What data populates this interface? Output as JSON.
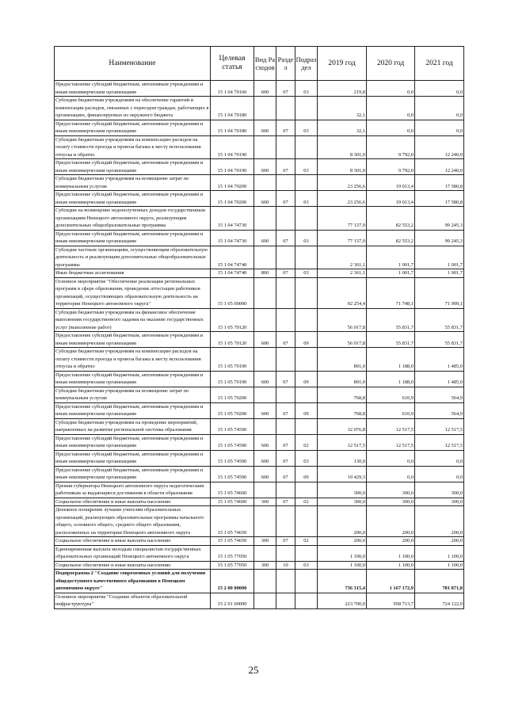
{
  "header": {
    "name": "Наименование",
    "target": "Целевая статья",
    "vid": "Вид Расходов",
    "razdel": "Раздел",
    "podrazdel": "Подраздел",
    "y2019": "2019 год",
    "y2020": "2020 год",
    "y2021": "2021 год"
  },
  "rows": [
    {
      "name": "Предоставление субсидий бюджетным, автономным учреждениям и иным некоммерческим организациям",
      "code": "15 1 04 70160",
      "vid": "600",
      "rz": "07",
      "pr": "03",
      "v2019": "219,8",
      "v2020": "0,0",
      "v2021": "0,0"
    },
    {
      "name": "Субсидии бюджетным учреждениям на обеспечение гарантий и компенсации расходов, связанных с переездом граждан, работающих в организациях, финансируемых из окружного бюджета",
      "code": "15 1 04 70180",
      "vid": "",
      "rz": "",
      "pr": "",
      "v2019": "32,1",
      "v2020": "0,0",
      "v2021": "0,0"
    },
    {
      "name": "Предоставление субсидий бюджетным, автономным учреждениям и иным некоммерческим организациям",
      "code": "15 1 04 70180",
      "vid": "600",
      "rz": "07",
      "pr": "03",
      "v2019": "32,1",
      "v2020": "0,0",
      "v2021": "0,0"
    },
    {
      "name": "Субсидии бюджетным учреждениям на компенсацию расходов на оплату стоимости проезда и провоза багажа к месту использования отпуска и обратно",
      "code": "15 1 04 70190",
      "vid": "",
      "rz": "",
      "pr": "",
      "v2019": "8 301,0",
      "v2020": "9 792,0",
      "v2021": "12 240,0"
    },
    {
      "name": "Предоставление субсидий бюджетным, автономным учреждениям и иным некоммерческим организациям",
      "code": "15 1 04 70190",
      "vid": "600",
      "rz": "07",
      "pr": "03",
      "v2019": "8 301,0",
      "v2020": "9 792,0",
      "v2021": "12 240,0"
    },
    {
      "name": "Субсидии бюджетным учреждениям на возмещение затрат по коммунальным услугам",
      "code": "15 1 04 70200",
      "vid": "",
      "rz": "",
      "pr": "",
      "v2019": "23 256,6",
      "v2020": "19 013,4",
      "v2021": "17 580,8"
    },
    {
      "name": "Предоставление субсидий бюджетным, автономным учреждениям и иным некоммерческим организациям",
      "code": "15 1 04 70200",
      "vid": "600",
      "rz": "07",
      "pr": "03",
      "v2019": "23 256,6",
      "v2020": "19 013,4",
      "v2021": "17 580,8"
    },
    {
      "name": "Субсидии на возмещение недополученных доходов государственным организациям Ненецкого автономного округа, реализующим дополнительные общеобразовательные программы",
      "code": "15 1 04 74730",
      "vid": "",
      "rz": "",
      "pr": "",
      "v2019": "77 137,9",
      "v2020": "82 553,2",
      "v2021": "99 245,3"
    },
    {
      "name": "Предоставление субсидий бюджетным, автономным учреждениям и иным некоммерческим организациям",
      "code": "15 1 04 74730",
      "vid": "600",
      "rz": "07",
      "pr": "03",
      "v2019": "77 137,9",
      "v2020": "82 553,2",
      "v2021": "99 245,3"
    },
    {
      "name": "Субсидии частным организациям, осуществляющим образовательную деятельность и реализующим дополнительные общеобразовательные программы",
      "code": "15 1 04 74740",
      "vid": "",
      "rz": "",
      "pr": "",
      "v2019": "2 361,1",
      "v2020": "1 001,7",
      "v2021": "1 001,7"
    },
    {
      "name": "Иные бюджетные ассигнования",
      "code": "15 1 04 74740",
      "vid": "800",
      "rz": "07",
      "pr": "03",
      "v2019": "2 361,1",
      "v2020": "1 001,7",
      "v2021": "1 001,7"
    },
    {
      "name": "Основное мероприятие \"Обеспечение реализации региональных программ в сфере образования, проведение аттестации работников организаций, осуществляющих образовательную деятельность на территории Ненецкого автономного округа\"",
      "code": "15 1 05 00000",
      "vid": "",
      "rz": "",
      "pr": "",
      "v2019": "92 254,4",
      "v2020": "71 748,1",
      "v2021": "71 999,1"
    },
    {
      "name": "Субсидии бюджетным учреждениям на финансовое обеспечение выполнения государственного задания на оказание государственных услуг (выполнение работ)",
      "code": "15 1 05 70120",
      "vid": "",
      "rz": "",
      "pr": "",
      "v2019": "56 917,8",
      "v2020": "55 831,7",
      "v2021": "55 831,7"
    },
    {
      "name": "Предоставление субсидий бюджетным, автономным учреждениям и иным некоммерческим организациям",
      "code": "15 1 05 70120",
      "vid": "600",
      "rz": "07",
      "pr": "09",
      "v2019": "56 917,8",
      "v2020": "55 831,7",
      "v2021": "55 831,7"
    },
    {
      "name": "Субсидии бюджетным учреждениям на компенсацию расходов на оплату стоимости проезда и провоза багажа к месту использования отпуска и обратно",
      "code": "15 1 05 70190",
      "vid": "",
      "rz": "",
      "pr": "",
      "v2019": "891,0",
      "v2020": "1 188,0",
      "v2021": "1 485,0"
    },
    {
      "name": "Предоставление субсидий бюджетным, автономным учреждениям и иным некоммерческим организациям",
      "code": "15 1 05 70190",
      "vid": "600",
      "rz": "07",
      "pr": "09",
      "v2019": "891,0",
      "v2020": "1 188,0",
      "v2021": "1 485,0"
    },
    {
      "name": "Субсидии бюджетным учреждениям на возмещение затрат по коммунальным услугам",
      "code": "15 1 05 70200",
      "vid": "",
      "rz": "",
      "pr": "",
      "v2019": "768,8",
      "v2020": "610,9",
      "v2021": "564,9"
    },
    {
      "name": "Предоставление субсидий бюджетным, автономным учреждениям и иным некоммерческим организациям",
      "code": "15 1 05 70200",
      "vid": "600",
      "rz": "07",
      "pr": "09",
      "v2019": "768,8",
      "v2020": "610,9",
      "v2021": "564,9"
    },
    {
      "name": "Субсидии бюджетным учреждениям на проведение мероприятий, направленных на развитие региональной системы образования",
      "code": "15 1 05 74590",
      "vid": "",
      "rz": "",
      "pr": "",
      "v2019": "32 076,8",
      "v2020": "12 517,5",
      "v2021": "12 517,5"
    },
    {
      "name": "Предоставление субсидий бюджетным, автономным учреждениям и иным некоммерческим организациям",
      "code": "15 1 05 74590",
      "vid": "600",
      "rz": "07",
      "pr": "02",
      "v2019": "12 517,5",
      "v2020": "12 517,5",
      "v2021": "12 517,5"
    },
    {
      "name": "Предоставление субсидий бюджетным, автономным учреждениям и иным некоммерческим организациям",
      "code": "15 1 05 74590",
      "vid": "600",
      "rz": "07",
      "pr": "03",
      "v2019": "130,0",
      "v2020": "0,0",
      "v2021": "0,0"
    },
    {
      "name": "Предоставление субсидий бюджетным, автономным учреждениям и иным некоммерческим организациям",
      "code": "15 1 05 74590",
      "vid": "600",
      "rz": "07",
      "pr": "09",
      "v2019": "19 429,3",
      "v2020": "0,0",
      "v2021": "0,0"
    },
    {
      "name": "Премии губернатора Ненецкого автономного округа педагогическим работникам за выдающиеся достижения в области образования",
      "code": "15 1 05 74600",
      "vid": "",
      "rz": "",
      "pr": "",
      "v2019": "300,0",
      "v2020": "300,0",
      "v2021": "300,0"
    },
    {
      "name": "Социальное обеспечение и иные выплаты населению",
      "code": "15 1 05 74600",
      "vid": "300",
      "rz": "07",
      "pr": "02",
      "v2019": "300,0",
      "v2020": "300,0",
      "v2021": "300,0"
    },
    {
      "name": "Денежное поощрение лучшим учителям образовательных организаций, реализующих образовательные программы начального общего, основного общего, среднего общего образования, расположенных на территории Ненецкого автономного округа",
      "code": "15 1 05 74650",
      "vid": "",
      "rz": "",
      "pr": "",
      "v2019": "200,0",
      "v2020": "200,0",
      "v2021": "200,0"
    },
    {
      "name": "Социальное обеспечение и иные выплаты населению",
      "code": "15 1 05 74650",
      "vid": "300",
      "rz": "07",
      "pr": "02",
      "v2019": "200,0",
      "v2020": "200,0",
      "v2021": "200,0"
    },
    {
      "name": "Единовременная выплата молодым специалистам государственных образовательных организаций Ненецкого автономного округа",
      "code": "15 1 05 77050",
      "vid": "",
      "rz": "",
      "pr": "",
      "v2019": "1 100,0",
      "v2020": "1 100,0",
      "v2021": "1 100,0"
    },
    {
      "name": "Социальное обеспечение и иные выплаты населению",
      "code": "15 1 05 77050",
      "vid": "300",
      "rz": "10",
      "pr": "03",
      "v2019": "1 100,0",
      "v2020": "1 100,0",
      "v2021": "1 100,0"
    },
    {
      "name": "Подпрограмма 2 \"Создание современных условий для получения общедоступного качественного образования в Ненецком автономном округе\"",
      "code": "15 2 00 00000",
      "vid": "",
      "rz": "",
      "pr": "",
      "v2019": "736 315,4",
      "v2020": "1 167 172,9",
      "v2021": "781 871,8",
      "bold": true
    },
    {
      "name": "Основное мероприятие \"Создание объектов образовательной инфраструктуры\"",
      "code": "15 2 01 00000",
      "vid": "",
      "rz": "",
      "pr": "",
      "v2019": "223 700,0",
      "v2020": "958 713,7",
      "v2021": "724 122,0"
    }
  ],
  "page_number": "25"
}
